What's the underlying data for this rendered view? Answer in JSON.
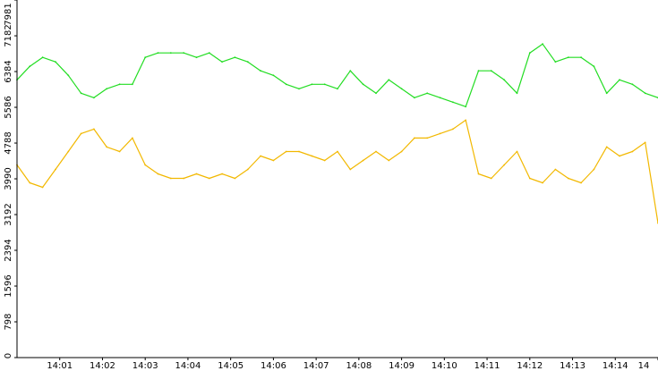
{
  "chart_data": {
    "type": "line",
    "title": "",
    "xlabel": "",
    "ylabel": "",
    "ylim": [
      0,
      7981
    ],
    "y_ticks": [
      0,
      798,
      1596,
      2394,
      3192,
      3990,
      4788,
      5586,
      6384,
      7182,
      7981
    ],
    "x_tick_labels": [
      "14:01",
      "14:02",
      "14:03",
      "14:04",
      "14:05",
      "14:06",
      "14:07",
      "14:08",
      "14:09",
      "14:10",
      "14:11",
      "14:12",
      "14:13",
      "14:14",
      "14"
    ],
    "x_range_minutes": [
      14.7,
      15.0
    ],
    "grid": false,
    "legend": "none",
    "series": [
      {
        "color": "#22dd22",
        "x_minutes": [
          0.0,
          0.3,
          0.6,
          0.9,
          1.2,
          1.5,
          1.8,
          2.1,
          2.4,
          2.7,
          3.0,
          3.3,
          3.6,
          3.9,
          4.2,
          4.5,
          4.8,
          5.1,
          5.4,
          5.7,
          6.0,
          6.3,
          6.6,
          6.9,
          7.2,
          7.5,
          7.8,
          8.1,
          8.4,
          8.7,
          9.0,
          9.3,
          9.6,
          9.9,
          10.2,
          10.5,
          10.8,
          11.1,
          11.4,
          11.7,
          12.0,
          12.3,
          12.6,
          12.9,
          13.2,
          13.5,
          13.8,
          14.1,
          14.4,
          14.7,
          15.0
        ],
        "values": [
          6200,
          6500,
          6700,
          6600,
          6300,
          5900,
          5800,
          6000,
          6100,
          6100,
          6700,
          6800,
          6800,
          6800,
          6700,
          6800,
          6600,
          6700,
          6600,
          6400,
          6300,
          6100,
          6000,
          6100,
          6100,
          6000,
          6400,
          6100,
          5900,
          6200,
          6000,
          5800,
          5900,
          5800,
          5700,
          5600,
          6400,
          6400,
          6200,
          5900,
          6800,
          7000,
          6600,
          6700,
          6700,
          6500,
          5900,
          6200,
          6100,
          5900,
          5800
        ]
      },
      {
        "color": "#f2b800",
        "x_minutes": [
          0.0,
          0.3,
          0.6,
          0.9,
          1.2,
          1.5,
          1.8,
          2.1,
          2.4,
          2.7,
          3.0,
          3.3,
          3.6,
          3.9,
          4.2,
          4.5,
          4.8,
          5.1,
          5.4,
          5.7,
          6.0,
          6.3,
          6.6,
          6.9,
          7.2,
          7.5,
          7.8,
          8.1,
          8.4,
          8.7,
          9.0,
          9.3,
          9.6,
          9.9,
          10.2,
          10.5,
          10.8,
          11.1,
          11.4,
          11.7,
          12.0,
          12.3,
          12.6,
          12.9,
          13.2,
          13.5,
          13.8,
          14.1,
          14.4,
          14.7,
          15.0
        ],
        "values": [
          4300,
          3900,
          3800,
          4200,
          4600,
          5000,
          5100,
          4700,
          4600,
          4900,
          4300,
          4100,
          4000,
          4000,
          4100,
          4000,
          4100,
          4000,
          4200,
          4500,
          4400,
          4600,
          4600,
          4500,
          4400,
          4600,
          4200,
          4400,
          4600,
          4400,
          4600,
          4900,
          4900,
          5000,
          5100,
          5300,
          4100,
          4000,
          4300,
          4600,
          4000,
          3900,
          4200,
          4000,
          3900,
          4200,
          4700,
          4500,
          4600,
          4800,
          3000
        ]
      }
    ]
  }
}
